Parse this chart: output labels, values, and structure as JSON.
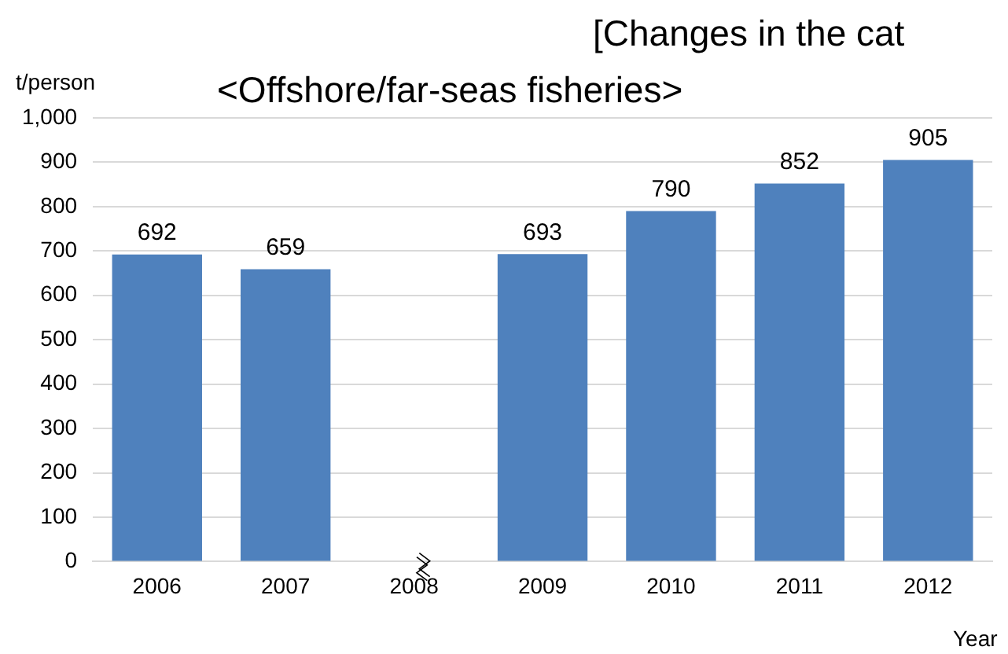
{
  "chart_data": {
    "type": "bar",
    "title": "[Changes in the cat",
    "subtitle": "<Offshore/far-seas fisheries>",
    "ylabel": "t/person",
    "xlabel": "Year",
    "categories": [
      "2006",
      "2007",
      "2008",
      "2009",
      "2010",
      "2011",
      "2012"
    ],
    "values": [
      692,
      659,
      null,
      693,
      790,
      852,
      905
    ],
    "color": "#4f81bd",
    "ylim": [
      0,
      1000
    ],
    "yticks": [
      0,
      {
        "value": 100,
        "label": "100"
      },
      200,
      300,
      400,
      500,
      600,
      700,
      800,
      900,
      {
        "value": 1000,
        "label": "1,000"
      }
    ],
    "grid": "y",
    "data_labels": true,
    "legend": false
  }
}
